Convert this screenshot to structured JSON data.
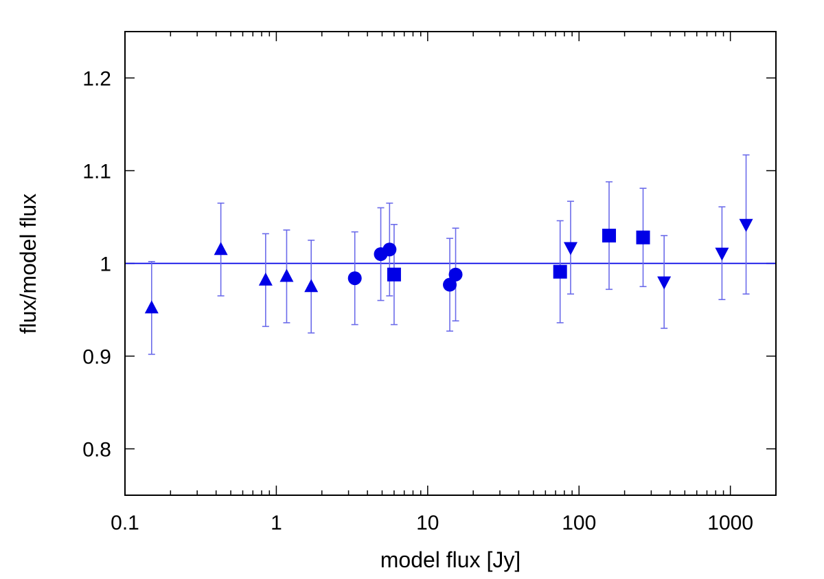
{
  "chart_data": {
    "type": "scatter",
    "title": "",
    "xlabel": "model flux [Jy]",
    "ylabel": "flux/model flux",
    "xscale": "log",
    "xlim": [
      0.1,
      2000
    ],
    "ylim": [
      0.75,
      1.25
    ],
    "xticks": [
      0.1,
      1,
      10,
      100,
      1000
    ],
    "xtick_labels": [
      "0.1",
      "1",
      "10",
      "100",
      "1000"
    ],
    "yticks": [
      0.8,
      0.9,
      1.0,
      1.1,
      1.2
    ],
    "ytick_labels": [
      "0.8",
      "0.9",
      "1",
      "1.1",
      "1.2"
    ],
    "reference_line": 1.0,
    "color": "#0000e6",
    "errorbar_color": "#6b6bea",
    "series": [
      {
        "name": "triangle-up",
        "marker": "triangle-up",
        "points": [
          {
            "x": 0.15,
            "y": 0.952,
            "err": 0.05
          },
          {
            "x": 0.43,
            "y": 1.015,
            "err": 0.05
          },
          {
            "x": 0.85,
            "y": 0.982,
            "err": 0.05
          },
          {
            "x": 1.17,
            "y": 0.986,
            "err": 0.05
          },
          {
            "x": 1.7,
            "y": 0.975,
            "err": 0.05
          }
        ]
      },
      {
        "name": "circle",
        "marker": "circle",
        "points": [
          {
            "x": 3.3,
            "y": 0.984,
            "err": 0.05
          },
          {
            "x": 4.9,
            "y": 1.01,
            "err": 0.05
          },
          {
            "x": 5.6,
            "y": 1.015,
            "err": 0.05
          },
          {
            "x": 14.0,
            "y": 0.977,
            "err": 0.05
          },
          {
            "x": 15.3,
            "y": 0.988,
            "err": 0.05
          }
        ]
      },
      {
        "name": "square",
        "marker": "square",
        "points": [
          {
            "x": 6.0,
            "y": 0.988,
            "err": 0.054
          },
          {
            "x": 75,
            "y": 0.991,
            "err": 0.055
          },
          {
            "x": 158,
            "y": 1.03,
            "err": 0.058
          },
          {
            "x": 265,
            "y": 1.028,
            "err": 0.053
          }
        ]
      },
      {
        "name": "triangle-down",
        "marker": "triangle-down",
        "points": [
          {
            "x": 88,
            "y": 1.017,
            "err": 0.05
          },
          {
            "x": 365,
            "y": 0.98,
            "err": 0.05
          },
          {
            "x": 880,
            "y": 1.011,
            "err": 0.05
          },
          {
            "x": 1270,
            "y": 1.042,
            "err": 0.075
          }
        ]
      }
    ]
  }
}
